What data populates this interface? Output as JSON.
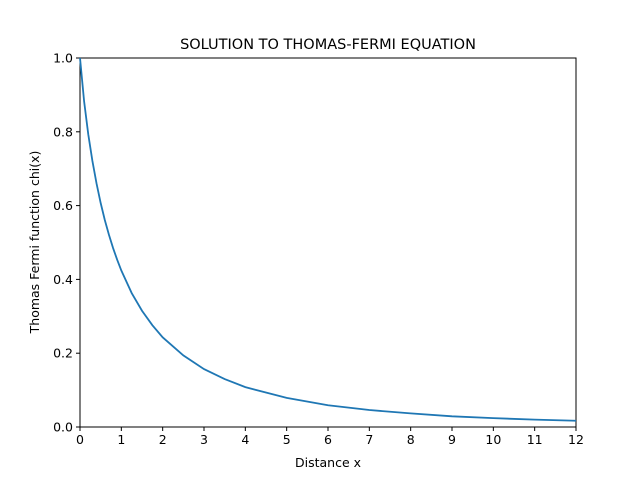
{
  "chart_data": {
    "type": "line",
    "title": "SOLUTION TO THOMAS-FERMI EQUATION",
    "xlabel": "Distance x",
    "ylabel": "Thomas Fermi function chi(x)",
    "xlim": [
      0,
      12
    ],
    "ylim": [
      0,
      1.0
    ],
    "xticks": [
      0,
      1,
      2,
      3,
      4,
      5,
      6,
      7,
      8,
      9,
      10,
      11,
      12
    ],
    "yticks": [
      "0.0",
      "0.2",
      "0.4",
      "0.6",
      "0.8",
      "1.0"
    ],
    "grid": false,
    "line_color": "#1f77b4",
    "series": [
      {
        "x": [
          0,
          0.1,
          0.2,
          0.3,
          0.4,
          0.5,
          0.6,
          0.7,
          0.8,
          0.9,
          1.0,
          1.25,
          1.5,
          1.75,
          2.0,
          2.5,
          3.0,
          3.5,
          4.0,
          5.0,
          6.0,
          7.0,
          8.0,
          9.0,
          10.0,
          11.0,
          12.0
        ],
        "y": [
          1.0,
          0.882,
          0.793,
          0.721,
          0.66,
          0.607,
          0.561,
          0.521,
          0.485,
          0.453,
          0.424,
          0.363,
          0.315,
          0.276,
          0.243,
          0.194,
          0.157,
          0.13,
          0.108,
          0.079,
          0.059,
          0.046,
          0.037,
          0.029,
          0.024,
          0.02,
          0.017
        ]
      }
    ]
  }
}
